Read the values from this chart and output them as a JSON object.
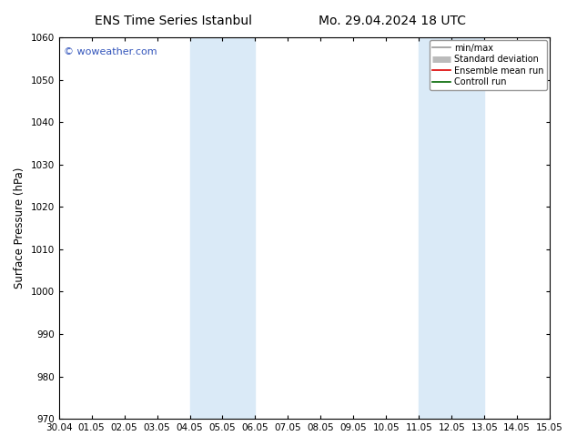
{
  "title_left": "ENS Time Series Istanbul",
  "title_right": "Mo. 29.04.2024 18 UTC",
  "ylabel": "Surface Pressure (hPa)",
  "xlabel": "",
  "ylim": [
    970,
    1060
  ],
  "yticks": [
    970,
    980,
    990,
    1000,
    1010,
    1020,
    1030,
    1040,
    1050,
    1060
  ],
  "xtick_labels": [
    "30.04",
    "01.05",
    "02.05",
    "03.05",
    "04.05",
    "05.05",
    "06.05",
    "07.05",
    "08.05",
    "09.05",
    "10.05",
    "11.05",
    "12.05",
    "13.05",
    "14.05",
    "15.05"
  ],
  "xlim_start": 0,
  "xlim_end": 15,
  "shaded_regions": [
    {
      "xstart": 4,
      "xend": 5,
      "color": "#daeaf7"
    },
    {
      "xstart": 5,
      "xend": 6,
      "color": "#daeaf7"
    },
    {
      "xstart": 11,
      "xend": 12,
      "color": "#daeaf7"
    },
    {
      "xstart": 12,
      "xend": 13,
      "color": "#daeaf7"
    }
  ],
  "watermark": "© woweather.com",
  "watermark_color": "#3355bb",
  "background_color": "#ffffff",
  "legend_items": [
    {
      "label": "min/max",
      "color": "#999999",
      "lw": 1.2
    },
    {
      "label": "Standard deviation",
      "color": "#bbbbbb",
      "lw": 5
    },
    {
      "label": "Ensemble mean run",
      "color": "#dd0000",
      "lw": 1.2
    },
    {
      "label": "Controll run",
      "color": "#006600",
      "lw": 1.2
    }
  ],
  "title_fontsize": 10,
  "tick_fontsize": 7.5,
  "ylabel_fontsize": 8.5,
  "watermark_fontsize": 8,
  "legend_fontsize": 7
}
